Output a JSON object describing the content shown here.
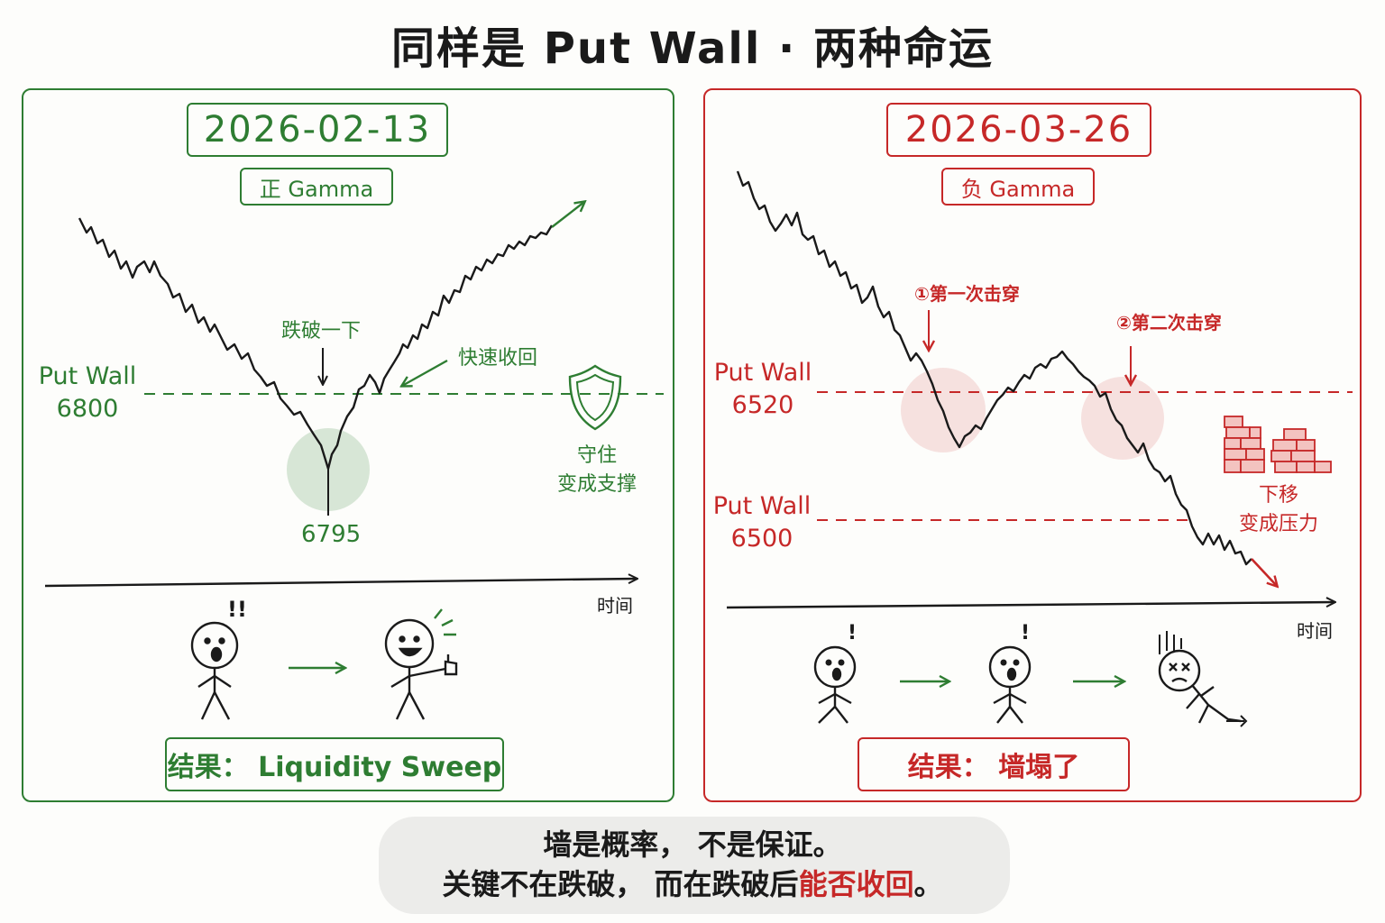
{
  "title": "同样是 Put Wall · 两种命运",
  "colors": {
    "green": "#2e7d32",
    "red": "#c62828",
    "ink": "#1a1a1a"
  },
  "left": {
    "date": "2026-02-13",
    "gamma": "正 Gamma",
    "wall_label": "Put Wall",
    "wall_value": "6800",
    "dip_label": "跌破一下",
    "recover_label": "快速收回",
    "low_value": "6795",
    "hold_line1": "守住",
    "hold_line2": "变成支撑",
    "time_label": "时间",
    "shock": "!!",
    "result": "结果： Liquidity Sweep",
    "icons": [
      "shield-icon",
      "stick-figure-surprised",
      "stick-figure-happy-thumbs-up"
    ]
  },
  "right": {
    "date": "2026-03-26",
    "gamma": "负 Gamma",
    "wall1_label": "Put Wall",
    "wall1_value": "6520",
    "wall2_label": "Put Wall",
    "wall2_value": "6500",
    "break1": "①第一次击穿",
    "break2": "②第二次击穿",
    "shift_line1": "下移",
    "shift_line2": "变成压力",
    "time_label": "时间",
    "shock": "!",
    "result": "结果： 墙塌了",
    "icons": [
      "broken-brick-wall-icon",
      "stick-figure-surprised",
      "stick-figure-fallen"
    ]
  },
  "footer": {
    "line1": "墙是概率， 不是保证。",
    "line2_pre": "关键不在跌破， 而在跌破后",
    "line2_hl": "能否收回",
    "line2_post": "。"
  }
}
